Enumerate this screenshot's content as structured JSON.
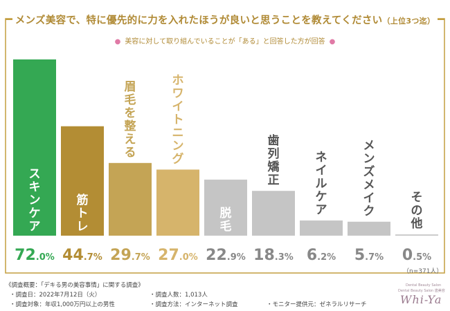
{
  "header": {
    "title_main": "メンズ美容で、特に優先的に力を入れたほうが良いと思うことを教えてください",
    "title_paren": "（上位3つ迄）",
    "subtitle": "美容に対して取り組んでいることが「ある」と回答した方が回答"
  },
  "chart_data": {
    "type": "bar",
    "categories": [
      "スキンケア",
      "筋トレ",
      "眉毛を整える",
      "ホワイトニング",
      "脱毛",
      "歯列矯正",
      "ネイルケア",
      "メンズメイク",
      "その他"
    ],
    "value_labels": [
      "72.0%",
      "44.7%",
      "29.7%",
      "27.0%",
      "22.9%",
      "18.3%",
      "6.2%",
      "5.7%",
      "0.5%"
    ],
    "values": [
      72.0,
      44.7,
      29.7,
      27.0,
      22.9,
      18.3,
      6.2,
      5.7,
      0.5
    ],
    "ylim": [
      0,
      72.0
    ],
    "bar_colors": [
      "#34a853",
      "#b38d34",
      "#c4a455",
      "#d6b46b",
      "#c5c5c5",
      "#c5c5c5",
      "#c5c5c5",
      "#c5c5c5",
      "#c5c5c5"
    ],
    "label_colors": [
      "#34a853",
      "#b38d34",
      "#c4a455",
      "#d6b46b",
      "#888888",
      "#888888",
      "#888888",
      "#888888",
      "#888888"
    ],
    "category_text_colors": [
      "#ffffff",
      "#ffffff",
      "#c4a455",
      "#d6b46b",
      "#ffffff",
      "#555555",
      "#555555",
      "#555555",
      "#555555"
    ]
  },
  "sample": {
    "n_label": "（n=371人）"
  },
  "notes": {
    "heading": "《調査概要：「デキる男の美容事情」に関する調査》",
    "date": "・調査日：2022年7月12日（火）",
    "count": "・調査人数：1,013人",
    "target": "・調査対象：年収1,000万円以上の男性",
    "method": "・調査方法：インターネット調査",
    "provider": "・モニター提供元：ゼネラルリサーチ"
  },
  "logo": {
    "wordmark": "Whi-Ya",
    "tagline": "Dental Beauty Salon 歯美容",
    "tagline_top": "Dental Beauty Salon"
  }
}
